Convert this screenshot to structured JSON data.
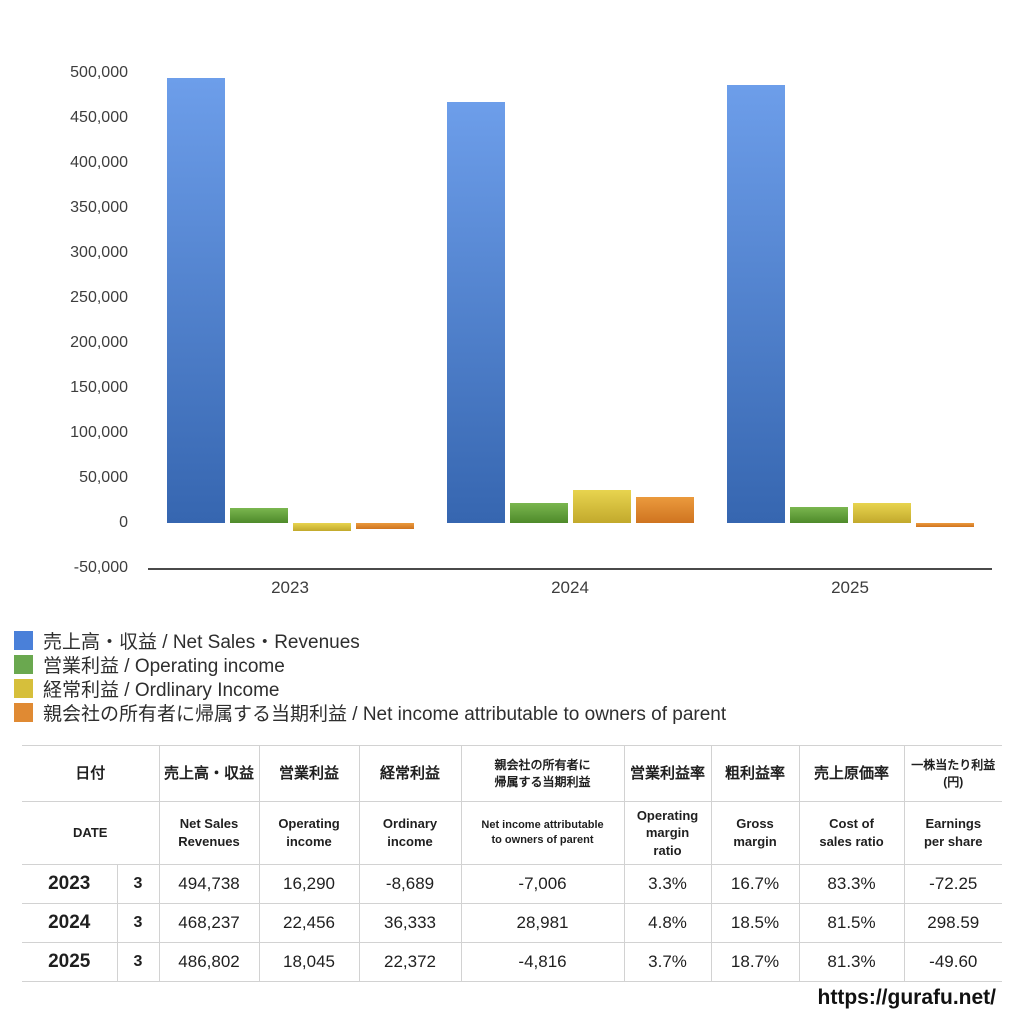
{
  "chart_data": {
    "type": "bar",
    "title": "",
    "xlabel": "",
    "ylabel": "",
    "categories": [
      "2023",
      "2024",
      "2025"
    ],
    "series": [
      {
        "key": "net-sales-revenues",
        "name": "売上高・収益 / Net Sales・Revenues",
        "values": [
          494738,
          468237,
          486802
        ],
        "color": {
          "light": "#6d9eea",
          "dark": "#3666b0",
          "legend": "#4a80d9"
        }
      },
      {
        "key": "operating-income",
        "name": "営業利益 / Operating income",
        "values": [
          16290,
          22456,
          18045
        ],
        "color": {
          "light": "#7ab64f",
          "dark": "#4e8a2a",
          "legend": "#6aa84f"
        }
      },
      {
        "key": "ordinary-income",
        "name": "経常利益 / Ordlinary Income",
        "values": [
          -8689,
          36333,
          22372
        ],
        "color": {
          "light": "#e8d44f",
          "dark": "#c2a92c",
          "legend": "#d6bf3b"
        }
      },
      {
        "key": "net-income-owners-of-parent",
        "name": "親会社の所有者に帰属する当期利益 / Net income attributable to owners of parent",
        "values": [
          -7006,
          28981,
          -4816
        ],
        "color": {
          "light": "#eb9a3d",
          "dark": "#cf7420",
          "legend": "#e08a33"
        }
      }
    ],
    "ylim": [
      -50000,
      500000
    ],
    "ytick_step": 50000,
    "grid": false,
    "legend_position": "bottom-left"
  },
  "table": {
    "header_jp": [
      "日付",
      "売上高・収益",
      "営業利益",
      "経常利益",
      "親会社の所有者に\n帰属する当期利益",
      "営業利益率",
      "粗利益率",
      "売上原価率",
      "一株当たり利益\n(円)"
    ],
    "header_en": [
      "DATE",
      "Net Sales\nRevenues",
      "Operating\nincome",
      "Ordinary\nincome",
      "Net income attributable\nto owners of parent",
      "Operating\nmargin\nratio",
      "Gross\nmargin",
      "Cost of\nsales ratio",
      "Earnings\nper share"
    ],
    "rows": [
      {
        "year": "2023",
        "month": "3",
        "cells": [
          "494,738",
          "16,290",
          "-8,689",
          "-7,006",
          "3.3%",
          "16.7%",
          "83.3%",
          "-72.25"
        ]
      },
      {
        "year": "2024",
        "month": "3",
        "cells": [
          "468,237",
          "22,456",
          "36,333",
          "28,981",
          "4.8%",
          "18.5%",
          "81.5%",
          "298.59"
        ]
      },
      {
        "year": "2025",
        "month": "3",
        "cells": [
          "486,802",
          "18,045",
          "22,372",
          "-4,816",
          "3.7%",
          "18.7%",
          "81.3%",
          "-49.60"
        ]
      }
    ],
    "negative_color": "#c0504d"
  },
  "footer": {
    "url": "https://gurafu.net/"
  }
}
